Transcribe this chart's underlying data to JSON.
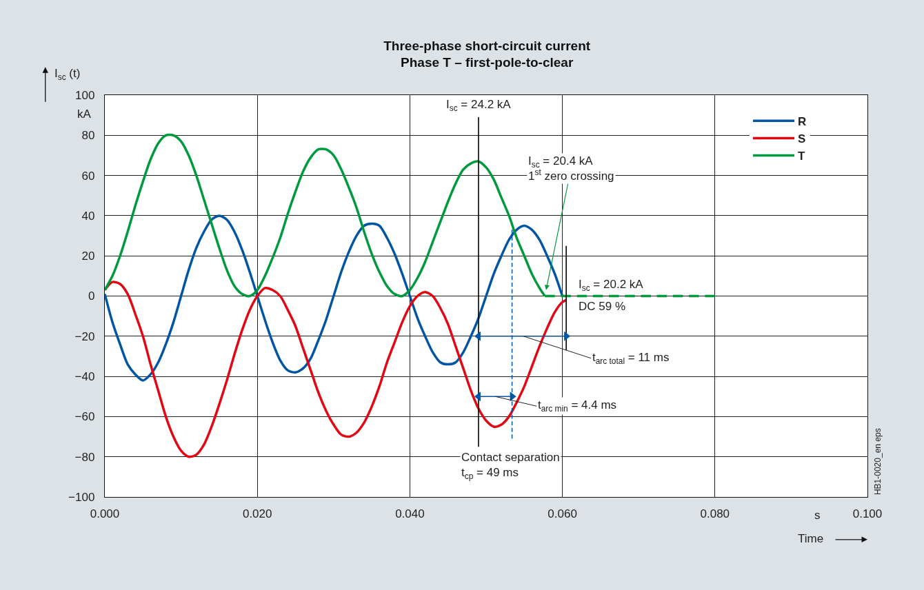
{
  "chart_data": {
    "type": "line",
    "title": "Three-phase short-circuit current",
    "subtitle": "Phase T – first-pole-to-clear",
    "xlabel": "Time",
    "ylabel": "I$_{sc}$ (t)",
    "xlim": [
      0,
      0.1
    ],
    "ylim": [
      -100,
      100
    ],
    "xticks": [
      {
        "value": 0,
        "label": "0.000"
      },
      {
        "value": 0.02,
        "label": "0.020"
      },
      {
        "value": 0.04,
        "label": "0.040"
      },
      {
        "value": 0.06,
        "label": "0.060"
      },
      {
        "value": 0.08,
        "label": "0.080"
      },
      {
        "value": 0.1,
        "label": "0.100"
      }
    ],
    "yticks": [
      {
        "value": -100,
        "label": "−100"
      },
      {
        "value": -80,
        "label": "−80"
      },
      {
        "value": -60,
        "label": "−60"
      },
      {
        "value": -40,
        "label": "−40"
      },
      {
        "value": -20,
        "label": "−20"
      },
      0,
      20,
      40,
      60,
      80,
      100
    ],
    "grid": true,
    "legend": "top right",
    "series": [
      {
        "name": "R",
        "color": "#0055a4",
        "x": [
          0,
          0.001,
          0.002,
          0.003,
          0.004,
          0.005,
          0.006,
          0.007,
          0.008,
          0.009,
          0.01,
          0.011,
          0.012,
          0.013,
          0.014,
          0.015,
          0.016,
          0.017,
          0.018,
          0.019,
          0.02,
          0.021,
          0.022,
          0.023,
          0.024,
          0.025,
          0.026,
          0.027,
          0.028,
          0.029,
          0.03,
          0.031,
          0.032,
          0.033,
          0.034,
          0.035,
          0.036,
          0.037,
          0.038,
          0.039,
          0.04,
          0.041,
          0.042,
          0.043,
          0.044,
          0.045,
          0.046,
          0.047,
          0.048,
          0.049,
          0.05,
          0.051,
          0.052,
          0.053,
          0.054,
          0.055,
          0.056,
          0.057,
          0.058,
          0.059,
          0.06
        ],
        "values": [
          1,
          -13,
          -24,
          -34,
          -39,
          -42,
          -39,
          -33,
          -24,
          -13,
          0,
          13,
          24,
          32,
          38,
          40,
          38,
          32,
          23,
          12,
          0,
          -12,
          -23,
          -32,
          -37,
          -38,
          -36,
          -31,
          -22,
          -12,
          0,
          12,
          22,
          30,
          35,
          36,
          35,
          29,
          21,
          11,
          0,
          -11,
          -20,
          -28,
          -33,
          -34,
          -33,
          -28,
          -20,
          -11,
          0,
          11,
          20,
          28,
          33,
          35,
          33,
          28,
          20,
          11,
          0
        ]
      },
      {
        "name": "S",
        "color": "#e30613",
        "x": [
          0,
          0.001,
          0.002,
          0.003,
          0.004,
          0.005,
          0.006,
          0.007,
          0.008,
          0.009,
          0.01,
          0.011,
          0.012,
          0.013,
          0.014,
          0.015,
          0.016,
          0.017,
          0.018,
          0.019,
          0.02,
          0.021,
          0.022,
          0.023,
          0.024,
          0.025,
          0.026,
          0.027,
          0.028,
          0.029,
          0.03,
          0.031,
          0.032,
          0.033,
          0.034,
          0.035,
          0.036,
          0.037,
          0.038,
          0.039,
          0.04,
          0.041,
          0.042,
          0.043,
          0.044,
          0.045,
          0.046,
          0.047,
          0.048,
          0.049,
          0.05,
          0.051,
          0.052,
          0.053,
          0.054,
          0.055,
          0.056,
          0.057,
          0.058,
          0.059,
          0.06,
          0.0605
        ],
        "values": [
          3,
          7,
          6,
          1,
          -9,
          -20,
          -34,
          -47,
          -60,
          -70,
          -77,
          -80,
          -79,
          -74,
          -65,
          -54,
          -42,
          -29,
          -17,
          -7,
          0,
          4,
          3,
          0,
          -7,
          -15,
          -26,
          -37,
          -48,
          -57,
          -64,
          -69,
          -70,
          -68,
          -63,
          -55,
          -45,
          -33,
          -23,
          -13,
          -5,
          0,
          2,
          0,
          -6,
          -14,
          -25,
          -36,
          -47,
          -56,
          -62,
          -65,
          -64,
          -60,
          -53,
          -45,
          -35,
          -25,
          -16,
          -8,
          -3,
          -2
        ]
      },
      {
        "name": "T",
        "color": "#009a3e",
        "x": [
          0,
          0.001,
          0.002,
          0.003,
          0.004,
          0.005,
          0.006,
          0.007,
          0.008,
          0.009,
          0.01,
          0.011,
          0.012,
          0.013,
          0.014,
          0.015,
          0.016,
          0.017,
          0.018,
          0.019,
          0.02,
          0.021,
          0.022,
          0.023,
          0.024,
          0.025,
          0.026,
          0.027,
          0.028,
          0.029,
          0.03,
          0.031,
          0.032,
          0.033,
          0.034,
          0.035,
          0.036,
          0.037,
          0.038,
          0.039,
          0.04,
          0.041,
          0.042,
          0.043,
          0.044,
          0.045,
          0.046,
          0.047,
          0.048,
          0.049,
          0.05,
          0.051,
          0.052,
          0.053,
          0.054,
          0.055,
          0.056,
          0.057,
          0.0577
        ],
        "values": [
          3,
          10,
          20,
          32,
          45,
          57,
          68,
          76,
          80,
          80,
          77,
          70,
          60,
          48,
          36,
          24,
          13,
          5,
          1,
          0,
          3,
          10,
          19,
          29,
          41,
          52,
          62,
          69,
          73,
          73,
          70,
          63,
          54,
          44,
          32,
          21,
          12,
          5,
          1,
          0,
          3,
          9,
          17,
          27,
          37,
          47,
          56,
          63,
          66,
          67,
          64,
          58,
          49,
          40,
          29,
          20,
          11,
          4,
          0
        ]
      },
      {
        "type": "line",
        "color": "#009a3e",
        "line_style": "dashed",
        "x": [
          0.0577,
          0.08
        ],
        "values": [
          0,
          0
        ]
      },
      {
        "type": "line",
        "color": "#000000",
        "x": [
          0.049,
          0.049
        ],
        "values": [
          89,
          -75
        ]
      },
      {
        "type": "line",
        "color": "#0055a4",
        "line_style": "dashed",
        "x": [
          0.0534,
          0.0534
        ],
        "values": [
          33,
          -71
        ]
      },
      {
        "type": "line",
        "color": "#000000",
        "x": [
          0.0605,
          0.0605
        ],
        "values": [
          25,
          -27
        ]
      },
      {
        "type": "line",
        "color": "#0055a4",
        "marker": "triangle",
        "x": [
          0.049,
          0.0605
        ],
        "values": [
          -20,
          -20
        ]
      },
      {
        "type": "line",
        "color": "#0055a4",
        "marker": "triangle",
        "x": [
          0.049,
          0.0534
        ],
        "values": [
          -50,
          -50
        ]
      }
    ],
    "annotations": [
      {
        "text": "I$_{sc}$ = 24.2 kA",
        "x": 0.049,
        "y": 89
      },
      {
        "text": "I$_{sc}$ = 20.4 kA\n1$^{st}$ zero crossing",
        "x": 0.0577,
        "y": 0
      },
      {
        "text": "I$_{sc}$ = 20.2 kA",
        "x": 0.0605,
        "y": 0
      },
      {
        "text": "DC 59 %",
        "x": 0.0605,
        "y": 0
      },
      {
        "text": "t$_{arc total}$ = 11 ms",
        "x": 0.0549,
        "y": -20
      },
      {
        "text": "t$_{arc min}$ = 4.4 ms",
        "x": 0.0512,
        "y": -50
      },
      {
        "text": "Contact separation\nt$_{cp}$ = 49 ms",
        "x": 0.049,
        "y": -75
      },
      "kA",
      "s",
      "HB1-0020_en eps"
    ]
  }
}
